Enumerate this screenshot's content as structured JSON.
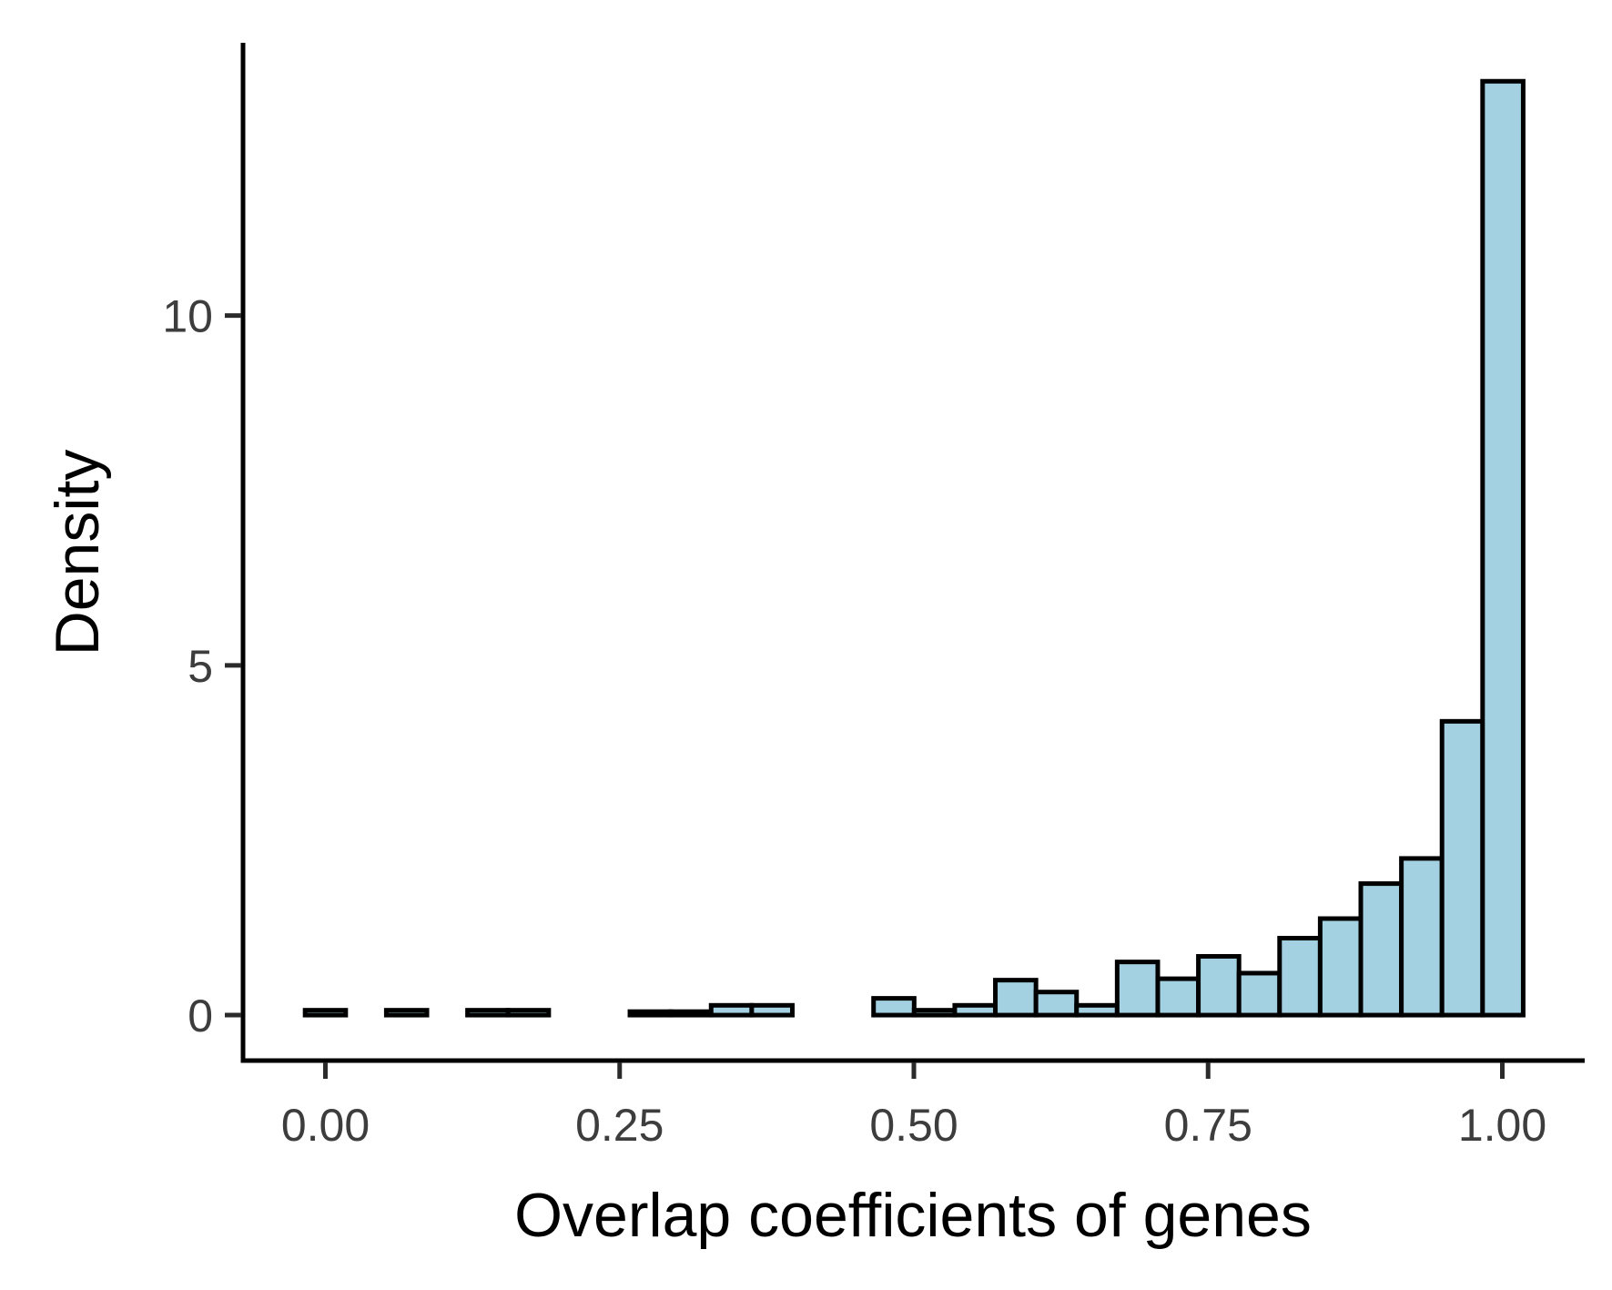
{
  "chart_data": {
    "type": "bar",
    "histogram": true,
    "xlabel": "Overlap coefficients of genes",
    "ylabel": "Density",
    "xlim": [
      -0.07,
      1.07
    ],
    "ylim": [
      -0.65,
      13.9
    ],
    "x_ticks": [
      0,
      0.25,
      0.5,
      0.75,
      1
    ],
    "x_tick_labels": [
      "0.00",
      "0.25",
      "0.50",
      "0.75",
      "1.00"
    ],
    "y_ticks": [
      0,
      5,
      10
    ],
    "y_tick_labels": [
      "0",
      "5",
      "10"
    ],
    "bin_width": 0.0345,
    "bin_start": -0.01725,
    "values": [
      0.07,
      0,
      0.07,
      0,
      0.07,
      0.07,
      0,
      0,
      0.05,
      0.05,
      0.14,
      0.14,
      0,
      0,
      0.24,
      0.07,
      0.14,
      0.5,
      0.33,
      0.14,
      0.76,
      0.52,
      0.84,
      0.6,
      1.1,
      1.38,
      1.88,
      2.24,
      4.2,
      13.35
    ],
    "bar_fill": "#a3d1e2",
    "bar_stroke": "#000000",
    "grid": false,
    "legend": "none"
  }
}
